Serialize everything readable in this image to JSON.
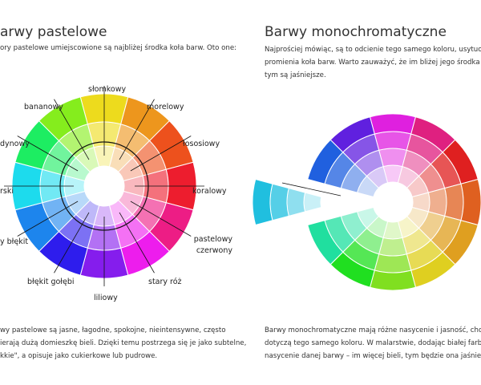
{
  "left": {
    "title": "arwy pastelowe",
    "intro": "ory pastelowe umiejscowione są najbliżej środka koła barw. Oto one:",
    "labels": [
      "słomkowy",
      "morelowy",
      "łososiowy",
      "koralowy",
      "pastelowy czerwony",
      "stary róż",
      "liliowy",
      "błękit gołębi",
      "y błękit",
      "rski",
      "dynowy",
      "bananowy"
    ],
    "body": [
      "wy pastelowe są jasne, łagodne, spokojne, nieintensywne, często",
      "ierają dużą domieszkę bieli. Dzięki temu postrzega się je jako subtelne,",
      "kkie\", a opisuje jako cukierkowe lub pudrowe."
    ]
  },
  "right": {
    "title": "Barwy monochromatyczne",
    "intro": [
      "Najprościej mówiąc, są to odcienie tego samego koloru, usytuowane wzd",
      "promienia koła barw. Warto zauważyć, że im bliżej jego środka się znajd",
      "tym są jaśniejsze."
    ],
    "body": [
      "Barwy monochromatyczne mają różne nasycenie i jasność, choć cechy te",
      "dotyczą tego samego koloru. W malarstwie, dodając białej farby, zmieni",
      "nasycenie danej barwy – im więcej bieli, tym będzie ona jaśniejsza."
    ]
  }
}
